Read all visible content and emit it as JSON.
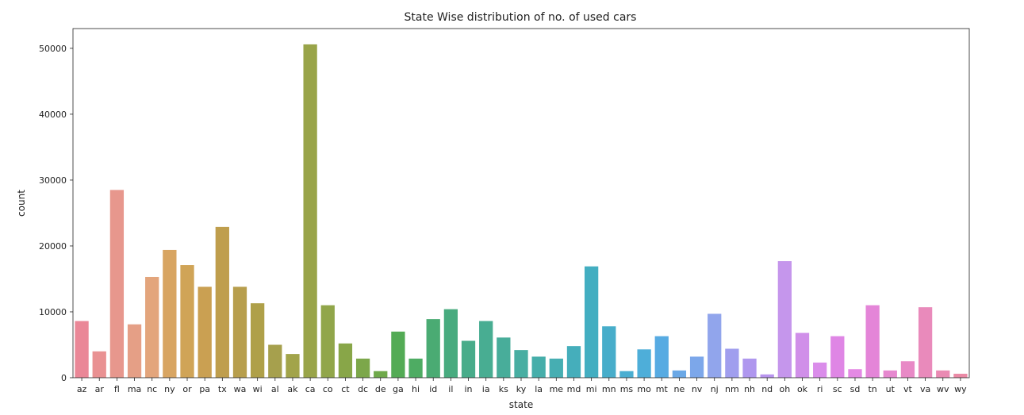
{
  "chart_data": {
    "type": "bar",
    "title": "State Wise distribution of no. of used cars",
    "xlabel": "state",
    "ylabel": "count",
    "ylim": [
      0,
      53000
    ],
    "yticks": [
      0,
      10000,
      20000,
      30000,
      40000,
      50000
    ],
    "grid": false,
    "categories": [
      "az",
      "ar",
      "fl",
      "ma",
      "nc",
      "ny",
      "or",
      "pa",
      "tx",
      "wa",
      "wi",
      "al",
      "ak",
      "ca",
      "co",
      "ct",
      "dc",
      "de",
      "ga",
      "hi",
      "id",
      "il",
      "in",
      "ia",
      "ks",
      "ky",
      "la",
      "me",
      "md",
      "mi",
      "mn",
      "ms",
      "mo",
      "mt",
      "ne",
      "nv",
      "nj",
      "nm",
      "nh",
      "nd",
      "oh",
      "ok",
      "ri",
      "sc",
      "sd",
      "tn",
      "ut",
      "vt",
      "va",
      "wv",
      "wy"
    ],
    "values": [
      8600,
      4000,
      28500,
      8100,
      15300,
      19400,
      17100,
      13800,
      22900,
      13800,
      11300,
      5000,
      3600,
      50600,
      11000,
      5200,
      2900,
      1000,
      7000,
      2900,
      8900,
      10400,
      5600,
      8600,
      6100,
      4200,
      3200,
      2900,
      4800,
      16900,
      7800,
      1000,
      4300,
      6300,
      1100,
      3200,
      9700,
      4400,
      2900,
      500,
      17700,
      6800,
      2300,
      6300,
      1300,
      11000,
      1100,
      2500,
      10700,
      1100,
      600
    ],
    "colors": [
      "#ea8797",
      "#e99192",
      "#e7978d",
      "#e59f86",
      "#e3a57c",
      "#d8a562",
      "#d0a457",
      "#caa052",
      "#bf9e4d",
      "#b79e4d",
      "#afa049",
      "#a6a04d",
      "#a2a44a",
      "#99a449",
      "#91a64a",
      "#88a648",
      "#7ca74a",
      "#6fa94a",
      "#53ab55",
      "#4eac63",
      "#4aab73",
      "#48ab7f",
      "#48ac8a",
      "#48ad92",
      "#48ad9a",
      "#48aea2",
      "#46aeaa",
      "#46aeb2",
      "#45aebb",
      "#43aec1",
      "#47adca",
      "#4aaed1",
      "#4eaed9",
      "#57abe2",
      "#6aa8e6",
      "#7ca7ea",
      "#91a5ec",
      "#a09eee",
      "#af97ee",
      "#b894ee",
      "#c596ec",
      "#d08fe9",
      "#da8dea",
      "#df86e5",
      "#e489e4",
      "#e485d8",
      "#e688cf",
      "#e889c6",
      "#e98abb",
      "#ea8ab3",
      "#ea89a5"
    ]
  }
}
